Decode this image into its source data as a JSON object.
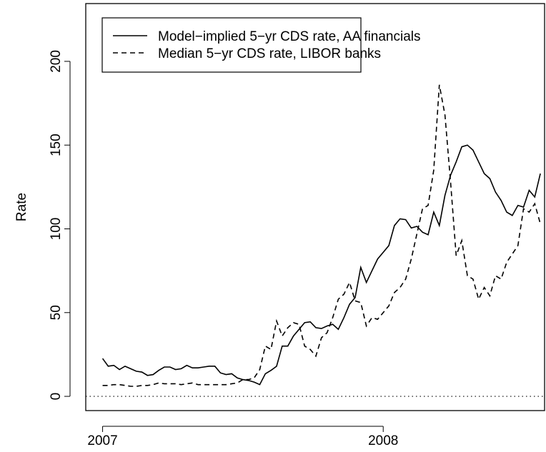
{
  "chart_data": {
    "type": "line",
    "ylabel": "Rate",
    "x": [
      2007.0,
      2007.02,
      2007.04,
      2007.06,
      2007.08,
      2007.1,
      2007.12,
      2007.14,
      2007.16,
      2007.18,
      2007.2,
      2007.22,
      2007.24,
      2007.26,
      2007.28,
      2007.3,
      2007.32,
      2007.34,
      2007.36,
      2007.38,
      2007.4,
      2007.42,
      2007.44,
      2007.46,
      2007.48,
      2007.5,
      2007.52,
      2007.54,
      2007.56,
      2007.58,
      2007.6,
      2007.62,
      2007.64,
      2007.66,
      2007.68,
      2007.7,
      2007.72,
      2007.74,
      2007.76,
      2007.78,
      2007.8,
      2007.82,
      2007.84,
      2007.86,
      2007.88,
      2007.9,
      2007.92,
      2007.94,
      2007.96,
      2007.98,
      2008.0,
      2008.02,
      2008.04,
      2008.06,
      2008.08,
      2008.1,
      2008.12,
      2008.14,
      2008.16,
      2008.18,
      2008.2,
      2008.22,
      2008.24,
      2008.26,
      2008.28,
      2008.3,
      2008.32,
      2008.34,
      2008.36,
      2008.38,
      2008.4,
      2008.42,
      2008.44,
      2008.46,
      2008.48,
      2008.5,
      2008.52,
      2008.54,
      2008.56
    ],
    "series": [
      {
        "name": "Model−implied 5−yr CDS rate, AA financials",
        "color": "#000000",
        "dash": "solid",
        "values": [
          22.6,
          18,
          18.5,
          16,
          18,
          16.5,
          15,
          14.5,
          12.5,
          13,
          15.5,
          17.5,
          17.5,
          16,
          16.5,
          18.5,
          17,
          17,
          17.5,
          18,
          18,
          14,
          13,
          13.5,
          11,
          10,
          9.5,
          8.5,
          7,
          13.5,
          15.5,
          18,
          30,
          30,
          36,
          40,
          44,
          44.5,
          41,
          40.5,
          42,
          43,
          40,
          47,
          55,
          59,
          77,
          68,
          75,
          82,
          86,
          90,
          102,
          106,
          105.5,
          100.5,
          101.5,
          98,
          96.5,
          110,
          102,
          120,
          132,
          140,
          149,
          150,
          147,
          140,
          133,
          130,
          122,
          117,
          110,
          108,
          114,
          113,
          123,
          119,
          133
        ]
      },
      {
        "name": "Median 5−yr CDS rate, LIBOR banks",
        "color": "#000000",
        "dash": "dashed",
        "values": [
          6.5,
          6.5,
          7,
          7,
          6.5,
          6,
          6,
          6.5,
          6.5,
          7,
          8,
          7.5,
          7.5,
          7.5,
          7,
          7.5,
          8,
          7,
          7,
          7,
          7,
          7,
          7,
          7.5,
          8,
          10,
          10,
          11,
          16,
          30,
          28,
          45,
          36,
          41,
          44,
          43,
          30,
          28,
          24,
          35,
          38,
          47,
          58,
          61,
          68,
          57,
          56,
          42,
          47,
          46,
          50,
          54,
          62,
          65,
          70,
          82,
          97,
          112,
          114,
          135,
          186,
          168,
          128,
          84,
          93,
          72,
          70,
          58,
          65,
          60,
          72,
          70,
          80,
          85,
          90,
          112,
          110,
          115,
          103
        ]
      }
    ],
    "xlim": [
      2006.94,
      2008.575
    ],
    "xticks": [
      2007,
      2008
    ],
    "ylim": [
      -8.5,
      234.5
    ],
    "yticks": [
      0,
      50,
      100,
      150,
      200
    ],
    "hline": 0,
    "legend": "top-left"
  }
}
